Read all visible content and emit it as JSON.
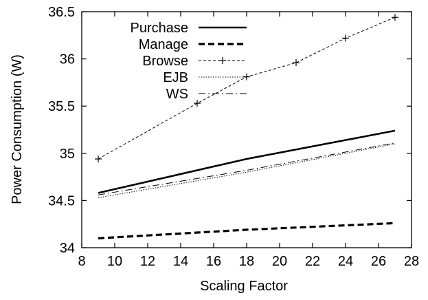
{
  "chart_data": {
    "type": "line",
    "xlabel": "Scaling Factor",
    "ylabel": "Power Consumption (W)",
    "xlim": [
      8,
      28
    ],
    "ylim": [
      34,
      36.5
    ],
    "xticks": [
      8,
      10,
      12,
      14,
      16,
      18,
      20,
      22,
      24,
      26,
      28
    ],
    "yticks": [
      34,
      34.5,
      35,
      35.5,
      36,
      36.5
    ],
    "xtick_labels": [
      "8",
      "10",
      "12",
      "14",
      "16",
      "18",
      "20",
      "22",
      "24",
      "26",
      "28"
    ],
    "ytick_labels": [
      "34",
      "34.5",
      "35",
      "35.5",
      "36",
      "36.5"
    ],
    "grid": false,
    "legend_position": "top-left",
    "series": [
      {
        "name": "Purchase",
        "style": "solid-thick",
        "x": [
          9,
          18,
          27
        ],
        "y": [
          34.58,
          34.94,
          35.24
        ]
      },
      {
        "name": "Manage",
        "style": "dashed-thick",
        "x": [
          9,
          18,
          27
        ],
        "y": [
          34.1,
          34.19,
          34.26
        ]
      },
      {
        "name": "Browse",
        "style": "dashed-plus",
        "x": [
          9,
          15,
          18,
          21,
          24,
          27
        ],
        "y": [
          34.94,
          35.53,
          35.81,
          35.96,
          36.22,
          36.44
        ]
      },
      {
        "name": "EJB",
        "style": "dotted",
        "x": [
          9,
          18,
          27
        ],
        "y": [
          34.53,
          34.8,
          35.1
        ]
      },
      {
        "name": "WS",
        "style": "dashdot",
        "x": [
          9,
          18,
          27
        ],
        "y": [
          34.56,
          34.82,
          35.11
        ]
      }
    ]
  }
}
